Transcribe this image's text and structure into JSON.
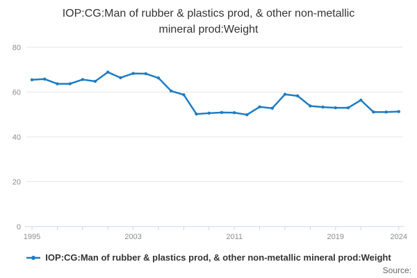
{
  "title": "IOP:CG:Man of rubber & plastics prod, & other non-metallic mineral prod:Weight",
  "legend": {
    "label": "IOP:CG:Man of rubber & plastics prod, & other non-metallic mineral prod:Weight"
  },
  "footer": {
    "source_label": "Source:"
  },
  "colors": {
    "series": "#1e7cc2",
    "grid": "#e6e6e6",
    "axis_line": "#ccd6eb",
    "tick_labels": "#8c8c8c",
    "title_text": "#333333",
    "legend_text": "#333333",
    "source_text": "#666666",
    "background": "#ffffff"
  },
  "chart_data": {
    "type": "line",
    "title": "IOP:CG:Man of rubber & plastics prod, & other non-metallic mineral prod:Weight",
    "xlabel": "",
    "ylabel": "",
    "x": [
      1995,
      1996,
      1997,
      1998,
      1999,
      2000,
      2001,
      2002,
      2003,
      2004,
      2005,
      2006,
      2007,
      2008,
      2009,
      2010,
      2011,
      2012,
      2013,
      2014,
      2015,
      2016,
      2017,
      2018,
      2019,
      2020,
      2021,
      2022,
      2023,
      2024
    ],
    "series": [
      {
        "name": "IOP:CG:Man of rubber & plastics prod, & other non-metallic mineral prod:Weight",
        "values": [
          65.5,
          65.8,
          63.7,
          63.7,
          65.6,
          64.8,
          68.9,
          66.4,
          68.3,
          68.2,
          66.3,
          60.5,
          58.8,
          50.2,
          50.6,
          50.9,
          50.8,
          49.9,
          53.4,
          52.8,
          59.0,
          58.3,
          53.8,
          53.3,
          53.0,
          53.0,
          56.4,
          51.1,
          51.1,
          51.3
        ]
      }
    ],
    "ylim": [
      0,
      80
    ],
    "yticks": [
      0,
      20,
      40,
      60,
      80
    ],
    "xticks_minor": [
      1995,
      1997,
      1999,
      2001,
      2003,
      2005,
      2007,
      2009,
      2011,
      2013,
      2015,
      2017,
      2019,
      2021,
      2024
    ],
    "xticks_labeled": [
      1995,
      2003,
      2011,
      2019,
      2024
    ],
    "grid": "horizontal",
    "legend_position": "bottom",
    "marker": "circle"
  }
}
